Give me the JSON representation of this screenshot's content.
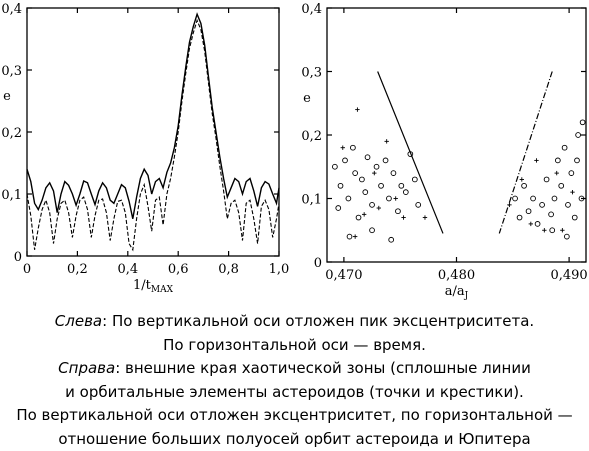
{
  "chart_data": [
    {
      "type": "line",
      "title": "",
      "xlabel": "1/t",
      "xlabel_sub": "MAX",
      "ylabel": "e",
      "xlim": [
        0,
        1.0
      ],
      "ylim": [
        0,
        0.4
      ],
      "xticks": [
        "0",
        "0,2",
        "0,4",
        "0,6",
        "0,8",
        "1,0"
      ],
      "yticks": [
        "0",
        "0,1",
        "0,2",
        "0,3",
        "0,4"
      ],
      "grid": false,
      "legend": "none",
      "series": [
        {
          "style": "solid",
          "x": [
            0,
            0.015,
            0.03,
            0.045,
            0.06,
            0.075,
            0.09,
            0.105,
            0.12,
            0.135,
            0.15,
            0.165,
            0.18,
            0.195,
            0.21,
            0.225,
            0.24,
            0.255,
            0.27,
            0.285,
            0.3,
            0.315,
            0.33,
            0.345,
            0.36,
            0.375,
            0.39,
            0.405,
            0.42,
            0.435,
            0.45,
            0.465,
            0.48,
            0.495,
            0.51,
            0.525,
            0.54,
            0.555,
            0.57,
            0.585,
            0.6,
            0.615,
            0.63,
            0.645,
            0.66,
            0.675,
            0.69,
            0.705,
            0.72,
            0.735,
            0.75,
            0.765,
            0.78,
            0.795,
            0.81,
            0.825,
            0.84,
            0.855,
            0.87,
            0.885,
            0.9,
            0.915,
            0.93,
            0.945,
            0.96,
            0.975,
            0.99,
            1.0
          ],
          "values": [
            0.14,
            0.12,
            0.085,
            0.075,
            0.09,
            0.11,
            0.118,
            0.105,
            0.07,
            0.1,
            0.12,
            0.114,
            0.1,
            0.082,
            0.1,
            0.121,
            0.118,
            0.1,
            0.083,
            0.105,
            0.118,
            0.11,
            0.09,
            0.085,
            0.1,
            0.115,
            0.11,
            0.088,
            0.06,
            0.095,
            0.125,
            0.14,
            0.13,
            0.1,
            0.12,
            0.125,
            0.11,
            0.135,
            0.15,
            0.175,
            0.21,
            0.26,
            0.305,
            0.345,
            0.37,
            0.39,
            0.375,
            0.34,
            0.29,
            0.24,
            0.2,
            0.16,
            0.125,
            0.095,
            0.11,
            0.125,
            0.12,
            0.1,
            0.12,
            0.125,
            0.105,
            0.08,
            0.11,
            0.12,
            0.116,
            0.1,
            0.085,
            0.11
          ]
        },
        {
          "style": "dashed",
          "x": [
            0,
            0.015,
            0.03,
            0.045,
            0.06,
            0.075,
            0.09,
            0.105,
            0.12,
            0.135,
            0.15,
            0.165,
            0.18,
            0.195,
            0.21,
            0.225,
            0.24,
            0.255,
            0.27,
            0.285,
            0.3,
            0.315,
            0.33,
            0.345,
            0.36,
            0.375,
            0.39,
            0.405,
            0.42,
            0.435,
            0.45,
            0.465,
            0.48,
            0.495,
            0.51,
            0.525,
            0.54,
            0.555,
            0.57,
            0.585,
            0.6,
            0.615,
            0.63,
            0.645,
            0.66,
            0.675,
            0.69,
            0.705,
            0.72,
            0.735,
            0.75,
            0.765,
            0.78,
            0.795,
            0.81,
            0.825,
            0.84,
            0.855,
            0.87,
            0.885,
            0.9,
            0.915,
            0.93,
            0.945,
            0.96,
            0.975,
            0.99,
            1.0
          ],
          "values": [
            0.1,
            0.065,
            0.01,
            0.045,
            0.075,
            0.09,
            0.07,
            0.02,
            0.06,
            0.085,
            0.09,
            0.07,
            0.03,
            0.065,
            0.09,
            0.095,
            0.075,
            0.03,
            0.065,
            0.09,
            0.092,
            0.07,
            0.025,
            0.06,
            0.088,
            0.09,
            0.07,
            0.02,
            0.01,
            0.06,
            0.1,
            0.115,
            0.08,
            0.04,
            0.09,
            0.095,
            0.05,
            0.1,
            0.125,
            0.16,
            0.2,
            0.25,
            0.295,
            0.335,
            0.36,
            0.38,
            0.365,
            0.33,
            0.28,
            0.23,
            0.19,
            0.145,
            0.105,
            0.06,
            0.085,
            0.09,
            0.07,
            0.025,
            0.085,
            0.09,
            0.06,
            0.02,
            0.08,
            0.09,
            0.075,
            0.03,
            0.06,
            0.085
          ]
        }
      ]
    },
    {
      "type": "scatter",
      "title": "",
      "xlabel": "a/a",
      "xlabel_sub": "J",
      "ylabel": "e",
      "xlim": [
        0.4685,
        0.4915
      ],
      "ylim": [
        0,
        0.4
      ],
      "xticks_values": [
        0.47,
        0.48,
        0.49
      ],
      "xticks": [
        "0,470",
        "0,480",
        "0,490"
      ],
      "yticks": [
        "0",
        "0,1",
        "0,2",
        "0,3",
        "0,4"
      ],
      "grid": false,
      "legend": "none",
      "lines": [
        {
          "x": [
            0.473,
            0.4788
          ],
          "y": [
            0.3,
            0.045
          ],
          "style": "solid"
        },
        {
          "x": [
            0.4885,
            0.4838
          ],
          "y": [
            0.3,
            0.045
          ],
          "style": "dash-dot"
        }
      ],
      "circles": [
        {
          "x": 0.4692,
          "y": 0.15
        },
        {
          "x": 0.4697,
          "y": 0.12
        },
        {
          "x": 0.4701,
          "y": 0.16
        },
        {
          "x": 0.4704,
          "y": 0.1
        },
        {
          "x": 0.4708,
          "y": 0.18
        },
        {
          "x": 0.471,
          "y": 0.14
        },
        {
          "x": 0.4713,
          "y": 0.07
        },
        {
          "x": 0.4716,
          "y": 0.13
        },
        {
          "x": 0.4719,
          "y": 0.11
        },
        {
          "x": 0.4721,
          "y": 0.165
        },
        {
          "x": 0.4725,
          "y": 0.09
        },
        {
          "x": 0.4729,
          "y": 0.15
        },
        {
          "x": 0.4733,
          "y": 0.12
        },
        {
          "x": 0.4737,
          "y": 0.16
        },
        {
          "x": 0.474,
          "y": 0.1
        },
        {
          "x": 0.4744,
          "y": 0.14
        },
        {
          "x": 0.4748,
          "y": 0.08
        },
        {
          "x": 0.4751,
          "y": 0.12
        },
        {
          "x": 0.4755,
          "y": 0.11
        },
        {
          "x": 0.4759,
          "y": 0.17
        },
        {
          "x": 0.4763,
          "y": 0.13
        },
        {
          "x": 0.4766,
          "y": 0.09
        },
        {
          "x": 0.4742,
          "y": 0.035
        },
        {
          "x": 0.4705,
          "y": 0.04
        },
        {
          "x": 0.4725,
          "y": 0.05
        },
        {
          "x": 0.4695,
          "y": 0.085
        },
        {
          "x": 0.4852,
          "y": 0.1
        },
        {
          "x": 0.4856,
          "y": 0.07
        },
        {
          "x": 0.486,
          "y": 0.12
        },
        {
          "x": 0.4864,
          "y": 0.08
        },
        {
          "x": 0.4868,
          "y": 0.1
        },
        {
          "x": 0.4872,
          "y": 0.06
        },
        {
          "x": 0.4876,
          "y": 0.09
        },
        {
          "x": 0.488,
          "y": 0.13
        },
        {
          "x": 0.4884,
          "y": 0.075
        },
        {
          "x": 0.4887,
          "y": 0.1
        },
        {
          "x": 0.489,
          "y": 0.16
        },
        {
          "x": 0.4893,
          "y": 0.12
        },
        {
          "x": 0.4896,
          "y": 0.18
        },
        {
          "x": 0.4899,
          "y": 0.09
        },
        {
          "x": 0.4902,
          "y": 0.14
        },
        {
          "x": 0.4905,
          "y": 0.07
        },
        {
          "x": 0.4908,
          "y": 0.2
        },
        {
          "x": 0.4911,
          "y": 0.1
        },
        {
          "x": 0.4898,
          "y": 0.04
        },
        {
          "x": 0.4885,
          "y": 0.05
        },
        {
          "x": 0.4907,
          "y": 0.16
        },
        {
          "x": 0.4912,
          "y": 0.22
        }
      ],
      "crosses": [
        {
          "x": 0.4699,
          "y": 0.18
        },
        {
          "x": 0.4712,
          "y": 0.24
        },
        {
          "x": 0.4718,
          "y": 0.075
        },
        {
          "x": 0.4731,
          "y": 0.085
        },
        {
          "x": 0.4738,
          "y": 0.19
        },
        {
          "x": 0.4746,
          "y": 0.1
        },
        {
          "x": 0.4753,
          "y": 0.07
        },
        {
          "x": 0.4772,
          "y": 0.07
        },
        {
          "x": 0.471,
          "y": 0.04
        },
        {
          "x": 0.4727,
          "y": 0.14
        },
        {
          "x": 0.4847,
          "y": 0.09
        },
        {
          "x": 0.4858,
          "y": 0.13
        },
        {
          "x": 0.4866,
          "y": 0.06
        },
        {
          "x": 0.4871,
          "y": 0.16
        },
        {
          "x": 0.4878,
          "y": 0.05
        },
        {
          "x": 0.4889,
          "y": 0.14
        },
        {
          "x": 0.4894,
          "y": 0.05
        },
        {
          "x": 0.4903,
          "y": 0.11
        }
      ]
    }
  ],
  "caption": {
    "line1_label": "Слева",
    "line1_text": ": По вертикальной оси отложен пик эксцентриситета.",
    "line2": "По горизонтальной оси — время.",
    "line3_label": "Справа",
    "line3_text": ": внешние края хаотической зоны (сплошные линии",
    "line4": "и орбитальные элементы астероидов (точки и крестики).",
    "line5": "По вертикальной оси отложен эксцентриситет, по горизонтальной —",
    "line6": "отношение больших полуосей орбит астероида и Юпитера"
  }
}
